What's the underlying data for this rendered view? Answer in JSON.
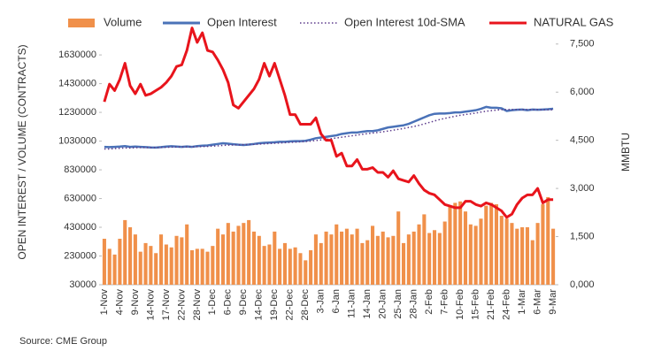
{
  "chart_data": {
    "type": "combo",
    "source": "Source: CME Group",
    "ylabel": "OPEN INTEREST / VOLUME (CONTRACTS)",
    "y2label": "MMBTU",
    "categories": [
      "1-Nov",
      null,
      null,
      "4-Nov",
      null,
      null,
      "9-Nov",
      null,
      null,
      "14-Nov",
      null,
      null,
      "17-Nov",
      null,
      null,
      "22-Nov",
      null,
      null,
      "28-Nov",
      null,
      null,
      "1-Dec",
      null,
      null,
      "6-Dec",
      null,
      null,
      "9-Dec",
      null,
      null,
      "14-Dec",
      null,
      null,
      "19-Dec",
      null,
      null,
      "22-Dec",
      null,
      null,
      "28-Dec",
      null,
      null,
      "3-Jan",
      null,
      null,
      "6-Jan",
      null,
      null,
      "11-Jan",
      null,
      null,
      "14-Jan",
      null,
      null,
      "20-Jan",
      null,
      null,
      "25-Jan",
      null,
      null,
      "28-Jan",
      null,
      null,
      "2-Feb",
      null,
      null,
      "7-Feb",
      null,
      null,
      "10-Feb",
      null,
      null,
      "15-Feb",
      null,
      null,
      "21-Feb",
      null,
      null,
      "24-Feb",
      null,
      null,
      "1-Mar",
      null,
      null,
      "6-Mar",
      null,
      null,
      "9-Mar"
    ],
    "series": [
      {
        "name": "Volume",
        "kind": "bar",
        "color": "#f0904a",
        "values": [
          350000,
          280000,
          240000,
          350000,
          480000,
          430000,
          380000,
          260000,
          320000,
          300000,
          250000,
          380000,
          310000,
          290000,
          370000,
          360000,
          450000,
          270000,
          280000,
          280000,
          260000,
          300000,
          420000,
          380000,
          460000,
          400000,
          440000,
          460000,
          480000,
          400000,
          370000,
          300000,
          310000,
          400000,
          280000,
          320000,
          280000,
          290000,
          250000,
          200000,
          270000,
          380000,
          320000,
          400000,
          380000,
          450000,
          400000,
          420000,
          380000,
          420000,
          320000,
          340000,
          440000,
          370000,
          400000,
          360000,
          370000,
          540000,
          320000,
          380000,
          400000,
          450000,
          520000,
          390000,
          410000,
          390000,
          470000,
          580000,
          600000,
          610000,
          540000,
          450000,
          440000,
          490000,
          580000,
          600000,
          590000,
          510000,
          490000,
          460000,
          420000,
          430000,
          430000,
          340000,
          460000,
          590000,
          640000,
          420000
        ]
      },
      {
        "name": "Open Interest",
        "kind": "line",
        "color": "#4a72b8",
        "dash": "solid",
        "values": [
          990000,
          988000,
          990000,
          992000,
          995000,
          990000,
          992000,
          990000,
          988000,
          986000,
          985000,
          988000,
          992000,
          994000,
          992000,
          990000,
          993000,
          990000,
          995000,
          998000,
          1000000,
          1005000,
          1010000,
          1015000,
          1012000,
          1008000,
          1005000,
          1003000,
          1006000,
          1010000,
          1015000,
          1018000,
          1020000,
          1022000,
          1025000,
          1025000,
          1028000,
          1030000,
          1030000,
          1032000,
          1040000,
          1050000,
          1055000,
          1060000,
          1065000,
          1070000,
          1080000,
          1085000,
          1090000,
          1090000,
          1095000,
          1100000,
          1100000,
          1105000,
          1115000,
          1125000,
          1130000,
          1135000,
          1140000,
          1150000,
          1165000,
          1180000,
          1195000,
          1210000,
          1220000,
          1222000,
          1222000,
          1225000,
          1230000,
          1230000,
          1235000,
          1240000,
          1245000,
          1255000,
          1268000,
          1262000,
          1262000,
          1258000,
          1240000,
          1245000,
          1248000,
          1250000,
          1245000,
          1250000,
          1248000,
          1250000,
          1252000,
          1255000
        ]
      },
      {
        "name": "Open Interest 10d-SMA",
        "kind": "line",
        "color": "#5b3a8c",
        "dash": "dotted",
        "values": [
          975000,
          975000,
          978000,
          980000,
          982000,
          982000,
          984000,
          985000,
          985000,
          985000,
          985000,
          986000,
          987000,
          988000,
          989000,
          989000,
          990000,
          990000,
          991000,
          992000,
          993000,
          995000,
          997000,
          1000000,
          1002000,
          1003000,
          1004000,
          1005000,
          1006000,
          1007000,
          1009000,
          1011000,
          1013000,
          1015000,
          1017000,
          1019000,
          1021000,
          1023000,
          1025000,
          1027000,
          1030000,
          1034000,
          1038000,
          1042000,
          1047000,
          1052000,
          1057000,
          1062000,
          1067000,
          1072000,
          1077000,
          1082000,
          1086000,
          1090000,
          1095000,
          1100000,
          1106000,
          1112000,
          1118000,
          1125000,
          1132000,
          1140000,
          1150000,
          1160000,
          1170000,
          1180000,
          1188000,
          1196000,
          1203000,
          1210000,
          1215000,
          1220000,
          1225000,
          1232000,
          1238000,
          1242000,
          1246000,
          1249000,
          1250000,
          1250000,
          1250000,
          1250000,
          1250000,
          1249000,
          1249000,
          1248000,
          1248000,
          1248000
        ]
      },
      {
        "name": "NATURAL GAS",
        "kind": "line",
        "color": "#e8141c",
        "dash": "solid",
        "axis": "y2",
        "values": [
          5700,
          6250,
          6050,
          6400,
          6900,
          6200,
          5950,
          6250,
          5900,
          5950,
          6050,
          6150,
          6300,
          6500,
          6800,
          6850,
          7300,
          8000,
          7550,
          7850,
          7300,
          7250,
          7000,
          6700,
          6300,
          5600,
          5500,
          5700,
          5900,
          6100,
          6400,
          6900,
          6500,
          6900,
          6400,
          5900,
          5300,
          5300,
          5000,
          5000,
          5000,
          5200,
          4700,
          4500,
          4500,
          4000,
          4100,
          3700,
          3700,
          3900,
          3600,
          3600,
          3650,
          3500,
          3500,
          3350,
          3550,
          3300,
          3250,
          3200,
          3400,
          3150,
          2950,
          2850,
          2800,
          2650,
          2500,
          2450,
          2400,
          2400,
          2600,
          2600,
          2500,
          2450,
          2550,
          2500,
          2400,
          2300,
          2100,
          2200,
          2500,
          2700,
          2800,
          2800,
          3000,
          2550,
          2650,
          2650
        ]
      }
    ],
    "ylim": [
      30000,
      1840000
    ],
    "yticks": [
      30000,
      230000,
      430000,
      630000,
      830000,
      1030000,
      1230000,
      1430000,
      1630000
    ],
    "y2lim": [
      0,
      8100
    ],
    "y2ticks": [
      {
        "value": 0,
        "label": "0,000"
      },
      {
        "value": 1500,
        "label": "1,500"
      },
      {
        "value": 3000,
        "label": "3,000"
      },
      {
        "value": 4500,
        "label": "4,500"
      },
      {
        "value": 6000,
        "label": "6,000"
      },
      {
        "value": 7500,
        "label": "7,500"
      }
    ],
    "grid": false,
    "legend": "top"
  }
}
